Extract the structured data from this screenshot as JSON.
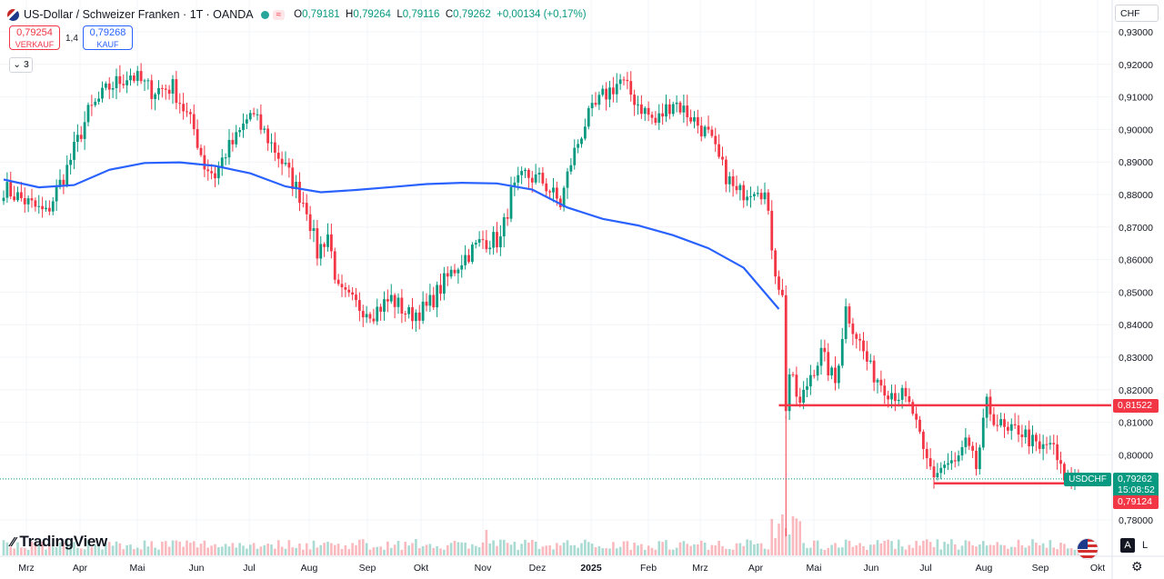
{
  "header": {
    "symbol": "US-Dollar / Schweizer Franken · 1T · OANDA",
    "badge2": "≈",
    "open_label": "O",
    "open": "0,79181",
    "high_label": "H",
    "high": "0,79264",
    "low_label": "L",
    "low": "0,79116",
    "close_label": "C",
    "close": "0,79262",
    "change": "+0,00134 (+0,17%)"
  },
  "quotes": {
    "sell_price": "0,79254",
    "sell_label": "VERKAUF",
    "buy_price": "0,79268",
    "buy_label": "KAUF",
    "spread": "1,4"
  },
  "indicator_counter": "3",
  "currency": "CHF",
  "brand": "TradingView",
  "buttons": {
    "auto": "A",
    "log": "L"
  },
  "colors": {
    "up": "#089981",
    "down": "#f23645",
    "ma": "#2962ff",
    "level": "#f23645"
  },
  "price_labels": {
    "symbol_tag": "USDCHF",
    "last": "0,79262",
    "countdown": "15:08:52",
    "level_high": "0,81522",
    "level_low": "0,79124"
  },
  "chart_data": {
    "type": "candlestick",
    "y_axis": {
      "min": 0.775,
      "max": 0.935,
      "ticks": [
        "0,93000",
        "0,92000",
        "0,91000",
        "0,90000",
        "0,89000",
        "0,88000",
        "0,87000",
        "0,86000",
        "0,85000",
        "0,84000",
        "0,83000",
        "0,82000",
        "0,81000",
        "0,80000",
        "0,78000"
      ]
    },
    "x_axis_labels": [
      "Mrz",
      "Apr",
      "Mai",
      "Jun",
      "Jul",
      "Aug",
      "Sep",
      "Okt",
      "Nov",
      "Dez",
      "2025",
      "Feb",
      "Mrz",
      "Apr",
      "Mai",
      "Jun",
      "Jul",
      "Aug",
      "Sep",
      "Okt"
    ],
    "close_path": [
      [
        0,
        0.882
      ],
      [
        6,
        0.878
      ],
      [
        12,
        0.874
      ],
      [
        18,
        0.888
      ],
      [
        24,
        0.905
      ],
      [
        30,
        0.913
      ],
      [
        36,
        0.917
      ],
      [
        42,
        0.912
      ],
      [
        48,
        0.913
      ],
      [
        54,
        0.9
      ],
      [
        57,
        0.889
      ],
      [
        60,
        0.886
      ],
      [
        63,
        0.893
      ],
      [
        66,
        0.897
      ],
      [
        70,
        0.905
      ],
      [
        74,
        0.899
      ],
      [
        78,
        0.892
      ],
      [
        82,
        0.884
      ],
      [
        86,
        0.876
      ],
      [
        89,
        0.862
      ],
      [
        92,
        0.868
      ],
      [
        95,
        0.85
      ],
      [
        100,
        0.846
      ],
      [
        105,
        0.844
      ],
      [
        110,
        0.848
      ],
      [
        115,
        0.843
      ],
      [
        120,
        0.845
      ],
      [
        125,
        0.853
      ],
      [
        130,
        0.86
      ],
      [
        136,
        0.866
      ],
      [
        141,
        0.866
      ],
      [
        144,
        0.88
      ],
      [
        148,
        0.886
      ],
      [
        153,
        0.884
      ],
      [
        158,
        0.877
      ],
      [
        161,
        0.89
      ],
      [
        165,
        0.902
      ],
      [
        170,
        0.91
      ],
      [
        175,
        0.915
      ],
      [
        180,
        0.908
      ],
      [
        185,
        0.902
      ],
      [
        190,
        0.909
      ],
      [
        195,
        0.904
      ],
      [
        200,
        0.898
      ],
      [
        204,
        0.888
      ],
      [
        208,
        0.88
      ],
      [
        212,
        0.882
      ],
      [
        214,
        0.883
      ],
      [
        216,
        0.88
      ],
      [
        219,
        0.857
      ],
      [
        221,
        0.848
      ],
      [
        222,
        0.815
      ],
      [
        223,
        0.825
      ],
      [
        226,
        0.815
      ],
      [
        229,
        0.825
      ],
      [
        232,
        0.831
      ],
      [
        236,
        0.822
      ],
      [
        239,
        0.845
      ],
      [
        242,
        0.837
      ],
      [
        246,
        0.826
      ],
      [
        251,
        0.82
      ],
      [
        255,
        0.818
      ],
      [
        258,
        0.813
      ],
      [
        261,
        0.8
      ],
      [
        264,
        0.794
      ],
      [
        267,
        0.797
      ],
      [
        270,
        0.797
      ],
      [
        273,
        0.803
      ],
      [
        276,
        0.796
      ],
      [
        279,
        0.815
      ],
      [
        282,
        0.81
      ],
      [
        285,
        0.806
      ],
      [
        288,
        0.808
      ],
      [
        291,
        0.805
      ],
      [
        294,
        0.801
      ],
      [
        297,
        0.804
      ],
      [
        300,
        0.795
      ],
      [
        302,
        0.792
      ],
      [
        303,
        0.792
      ],
      [
        305,
        0.796
      ]
    ],
    "moving_average": [
      [
        0,
        0.8846
      ],
      [
        10,
        0.8822
      ],
      [
        20,
        0.8829
      ],
      [
        30,
        0.8876
      ],
      [
        40,
        0.8897
      ],
      [
        50,
        0.8899
      ],
      [
        60,
        0.8888
      ],
      [
        70,
        0.8865
      ],
      [
        80,
        0.8825
      ],
      [
        90,
        0.8807
      ],
      [
        100,
        0.8814
      ],
      [
        110,
        0.8823
      ],
      [
        120,
        0.8832
      ],
      [
        130,
        0.8836
      ],
      [
        140,
        0.8834
      ],
      [
        150,
        0.8815
      ],
      [
        160,
        0.876
      ],
      [
        170,
        0.8725
      ],
      [
        180,
        0.8705
      ],
      [
        190,
        0.8675
      ],
      [
        200,
        0.8635
      ],
      [
        210,
        0.8575
      ],
      [
        220,
        0.8448
      ]
    ],
    "levels": [
      {
        "name": "0,81522",
        "value": 0.81522
      },
      {
        "name": "0,79124",
        "value": 0.79124
      }
    ],
    "last_price": 0.79262,
    "volume": "bars at bottom"
  }
}
